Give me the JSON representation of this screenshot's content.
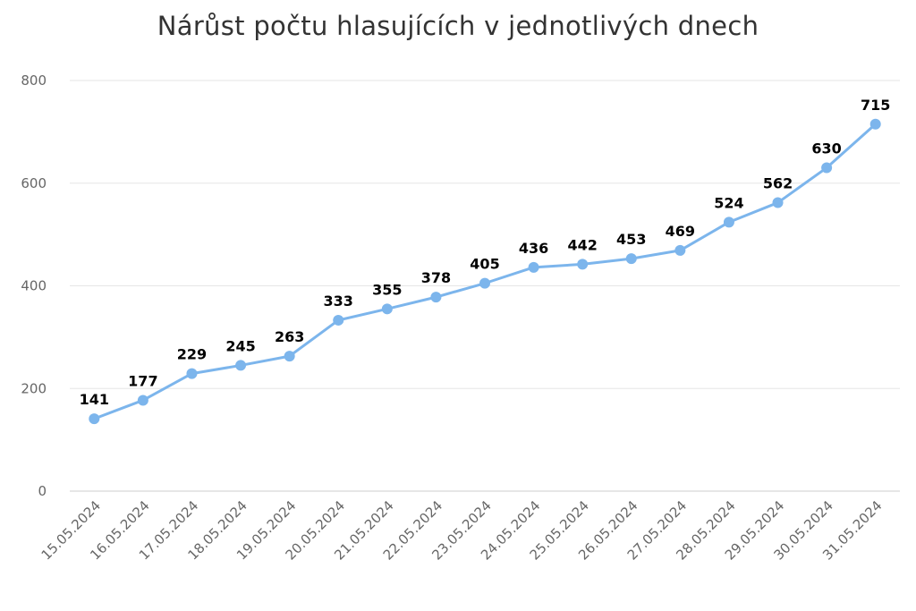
{
  "chart_data": {
    "type": "line",
    "title": "Nárůst počtu hlasujících v jednotlivých dnech",
    "xlabel": "",
    "ylabel": "",
    "ylim": [
      0,
      800
    ],
    "yticks": [
      0,
      200,
      400,
      600,
      800
    ],
    "grid": true,
    "legend": "none",
    "categories": [
      "15.05.2024",
      "16.05.2024",
      "17.05.2024",
      "18.05.2024",
      "19.05.2024",
      "20.05.2024",
      "21.05.2024",
      "22.05.2024",
      "23.05.2024",
      "24.05.2024",
      "25.05.2024",
      "26.05.2024",
      "27.05.2024",
      "28.05.2024",
      "29.05.2024",
      "30.05.2024",
      "31.05.2024"
    ],
    "series": [
      {
        "color": "#7cb5ec",
        "values": [
          141,
          177,
          229,
          245,
          263,
          333,
          355,
          378,
          405,
          436,
          442,
          453,
          469,
          524,
          562,
          630,
          715
        ]
      }
    ]
  }
}
